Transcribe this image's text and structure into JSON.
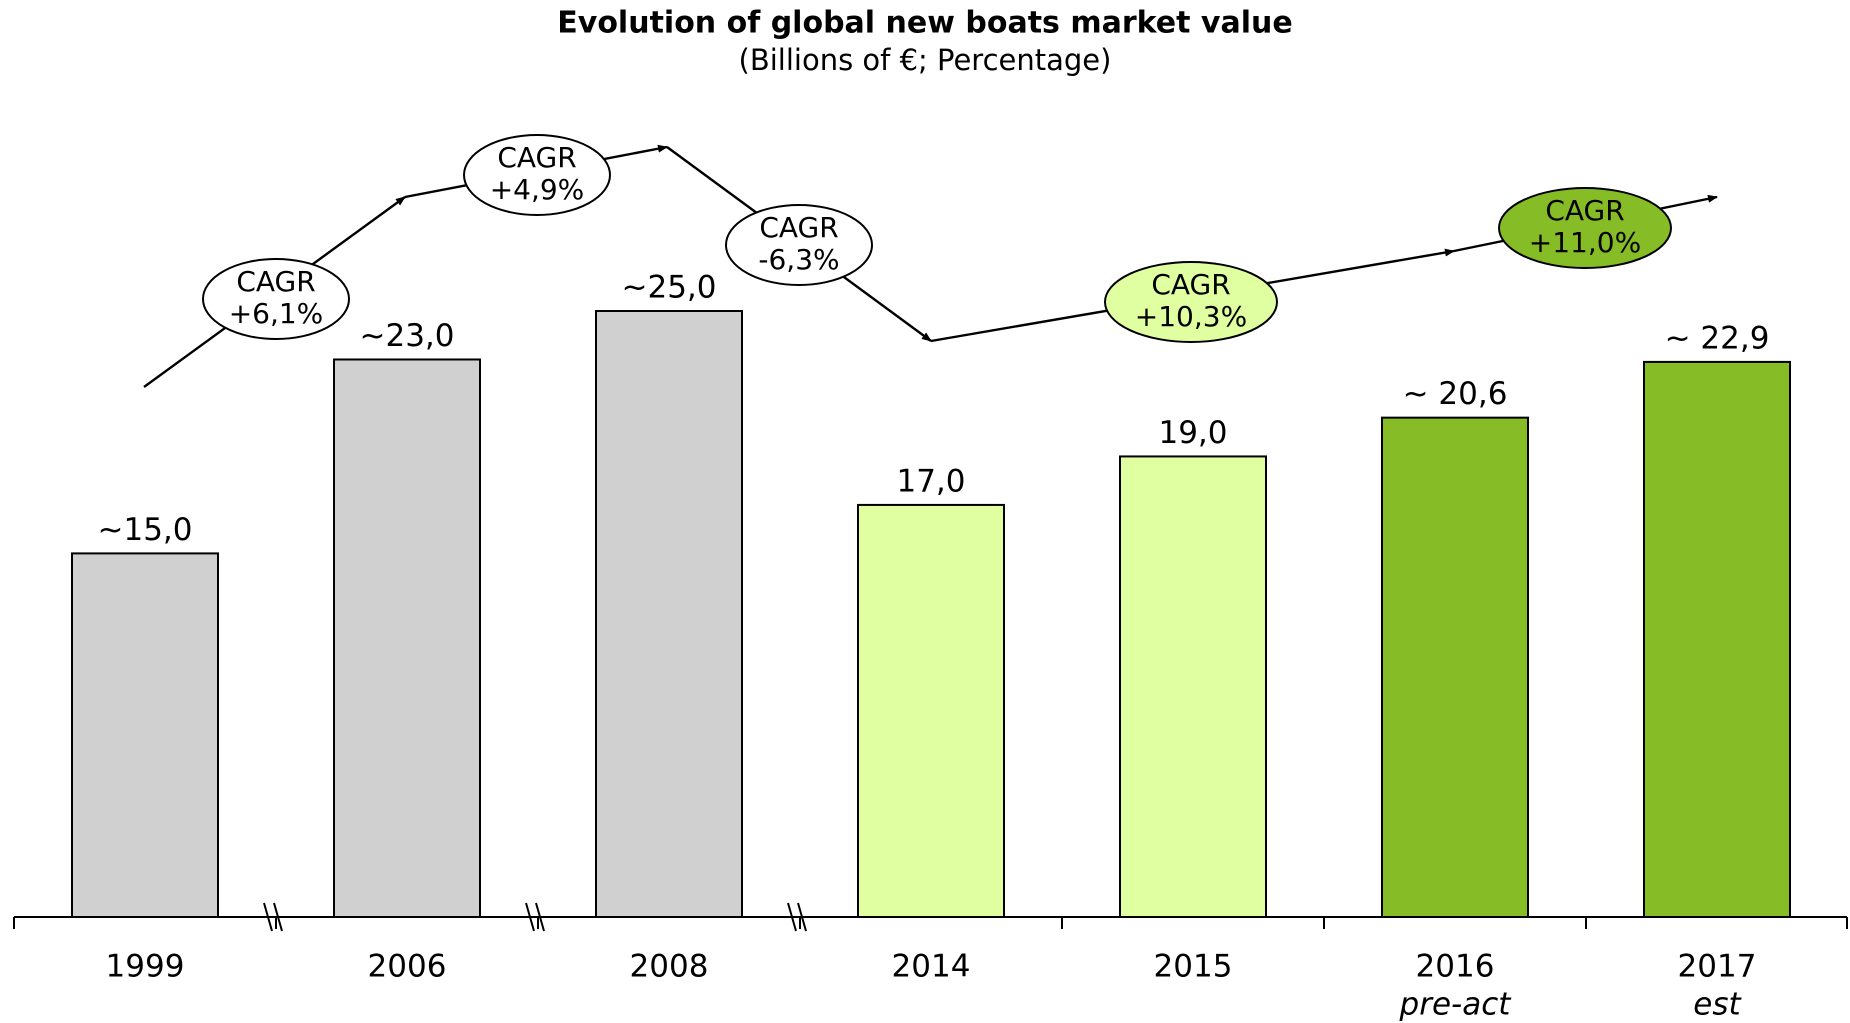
{
  "chart_data": {
    "type": "bar",
    "title": "Evolution of global new boats market value",
    "subtitle": "(Billions of €; Percentage)",
    "categories": [
      "1999",
      "2006",
      "2008",
      "2014",
      "2015",
      "2016",
      "2017"
    ],
    "sublabels": [
      null,
      null,
      null,
      null,
      null,
      "pre-act",
      "est"
    ],
    "values": [
      15,
      23,
      25,
      17,
      19,
      20.6,
      22.9
    ],
    "value_labels": [
      "~15,0",
      "~23,0",
      "~25,0",
      "17,0",
      "19,0",
      "~ 20,6",
      "~ 22,9"
    ],
    "colors": [
      "#d0d0d0",
      "#d0d0d0",
      "#d0d0d0",
      "#e0ffa0",
      "#e0ffa0",
      "#86bc25",
      "#86bc25"
    ],
    "annotations": [
      {
        "text": [
          "CAGR",
          "+6,1%"
        ],
        "color": "#ffffff",
        "text_color": "#000000"
      },
      {
        "text": [
          "CAGR",
          "+4,9%"
        ],
        "color": "#ffffff",
        "text_color": "#000000"
      },
      {
        "text": [
          "CAGR",
          "-6,3%"
        ],
        "color": "#ffffff",
        "text_color": "#000000"
      },
      {
        "text": [
          "CAGR",
          "+10,3%"
        ],
        "color": "#e0ffa0",
        "text_color": "#000000"
      },
      {
        "text": [
          "CAGR",
          "+11,0%"
        ],
        "color": "#86bc25",
        "text_color": "#ffffff"
      }
    ]
  }
}
